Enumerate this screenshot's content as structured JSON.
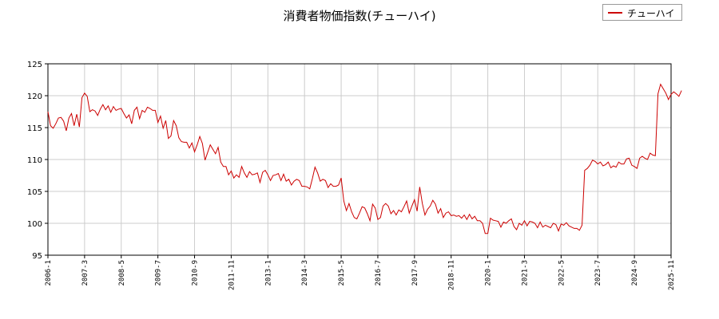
{
  "chart_data": {
    "type": "line",
    "title": "消費者物価指数(チューハイ)",
    "xlabel": "",
    "ylabel": "",
    "ylim": [
      95,
      125
    ],
    "yticks": [
      95,
      100,
      105,
      110,
      115,
      120,
      125
    ],
    "xtick_labels": [
      "2006-1",
      "2007-3",
      "2008-5",
      "2009-7",
      "2010-9",
      "2011-11",
      "2013-1",
      "2014-3",
      "2015-5",
      "2016-7",
      "2017-9",
      "2018-11",
      "2020-1",
      "2021-3",
      "2022-5",
      "2023-7",
      "2024-9",
      "2025-11"
    ],
    "grid": true,
    "legend_position": "top-right",
    "series": [
      {
        "name": "チューハイ",
        "color": "#cc0000",
        "x_start": "2006-1",
        "x_step": "1 month",
        "values": [
          117.5,
          115.3,
          114.9,
          115.6,
          116.5,
          116.6,
          116.0,
          114.5,
          116.5,
          117.2,
          115.3,
          117.1,
          115.1,
          119.7,
          120.4,
          119.9,
          117.5,
          117.8,
          117.6,
          116.9,
          117.9,
          118.6,
          117.8,
          118.4,
          117.4,
          118.3,
          117.7,
          117.9,
          118.0,
          117.2,
          116.5,
          117.0,
          115.6,
          117.7,
          118.2,
          116.4,
          117.7,
          117.4,
          118.2,
          118.0,
          117.7,
          117.7,
          115.8,
          116.8,
          114.9,
          116.1,
          113.3,
          113.7,
          116.1,
          115.3,
          113.4,
          112.8,
          112.7,
          112.7,
          111.8,
          112.6,
          111.2,
          112.3,
          113.6,
          112.5,
          109.9,
          111.1,
          112.3,
          111.6,
          110.9,
          111.9,
          109.6,
          108.9,
          108.9,
          107.6,
          108.2,
          107.1,
          107.6,
          107.2,
          108.9,
          107.9,
          107.2,
          108.1,
          107.6,
          107.7,
          107.9,
          106.4,
          108.0,
          108.3,
          107.6,
          106.7,
          107.5,
          107.6,
          107.8,
          106.7,
          107.7,
          106.6,
          106.9,
          106.0,
          106.6,
          106.9,
          106.7,
          105.8,
          105.8,
          105.7,
          105.4,
          107.0,
          108.8,
          107.9,
          106.6,
          106.9,
          106.7,
          105.6,
          106.2,
          105.8,
          105.8,
          106.0,
          107.1,
          103.5,
          102.0,
          103.1,
          101.8,
          100.9,
          100.7,
          101.6,
          102.6,
          102.4,
          101.5,
          100.4,
          103.0,
          102.4,
          100.6,
          100.9,
          102.7,
          103.1,
          102.7,
          101.5,
          102.0,
          101.3,
          102.1,
          101.8,
          102.6,
          103.5,
          101.6,
          102.7,
          103.7,
          101.9,
          105.7,
          103.1,
          101.3,
          102.2,
          102.7,
          103.6,
          103.0,
          101.6,
          102.3,
          100.9,
          101.6,
          101.8,
          101.2,
          101.3,
          101.1,
          101.2,
          100.8,
          101.3,
          100.6,
          101.4,
          100.7,
          101.1,
          100.4,
          100.4,
          100.0,
          98.4,
          98.4,
          100.8,
          100.5,
          100.4,
          100.3,
          99.4,
          100.2,
          100.0,
          100.4,
          100.7,
          99.5,
          99.0,
          100.0,
          99.7,
          100.4,
          99.6,
          100.3,
          100.2,
          100.0,
          99.3,
          100.2,
          99.4,
          99.7,
          99.5,
          99.3,
          100.0,
          99.8,
          98.8,
          99.9,
          99.7,
          100.1,
          99.6,
          99.4,
          99.2,
          99.2,
          98.9,
          99.7,
          108.3,
          108.6,
          109.1,
          109.9,
          109.7,
          109.3,
          109.6,
          109.0,
          109.2,
          109.6,
          108.7,
          109.0,
          108.8,
          109.6,
          109.3,
          109.3,
          110.1,
          110.2,
          109.1,
          108.9,
          108.6,
          110.2,
          110.5,
          110.2,
          110.0,
          111.0,
          110.7,
          110.6,
          120.3,
          121.8,
          121.1,
          120.4,
          119.4,
          120.2,
          120.6,
          120.3,
          119.9,
          120.8
        ]
      }
    ]
  }
}
